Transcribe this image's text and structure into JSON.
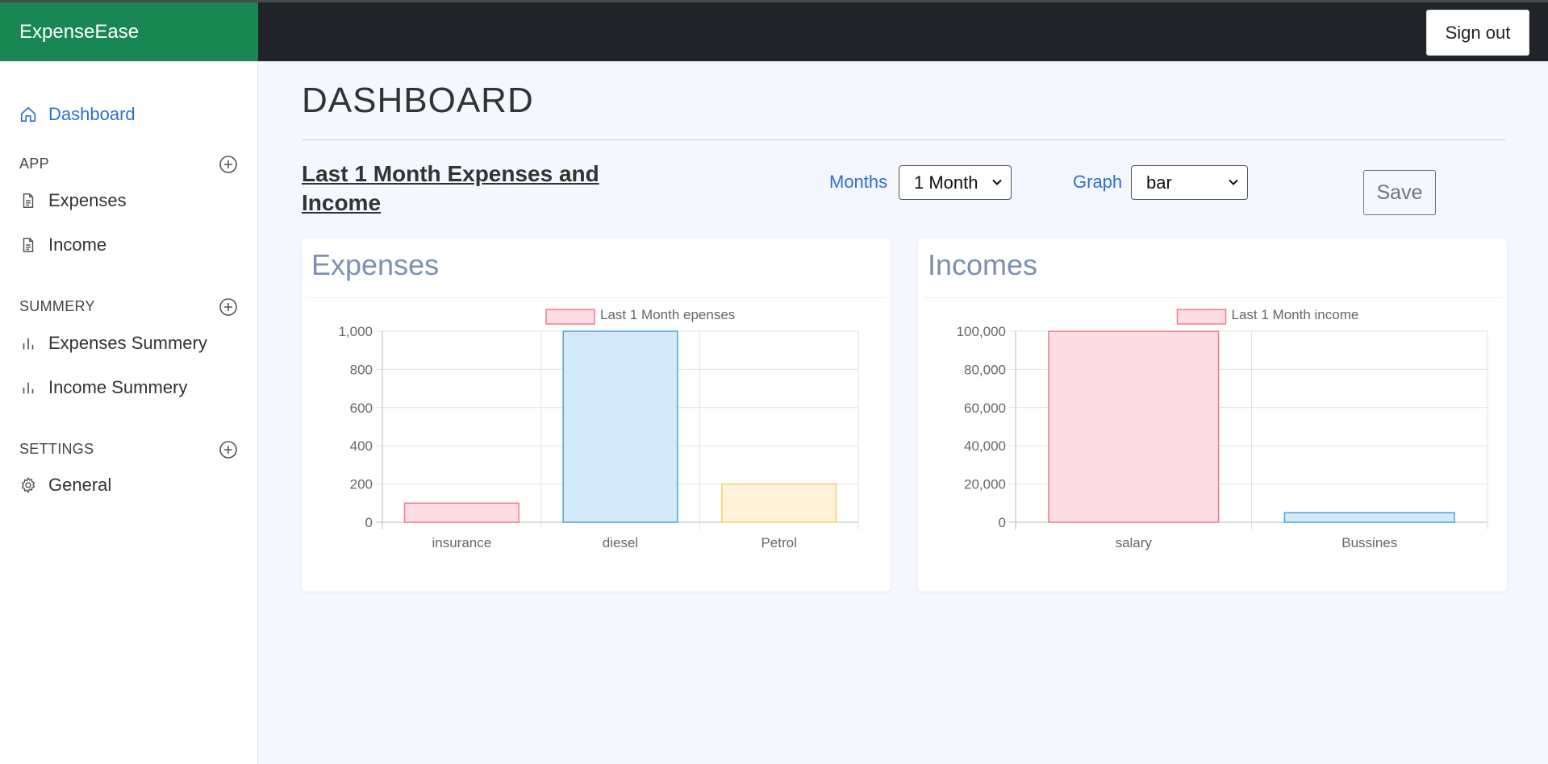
{
  "app": {
    "brand": "ExpenseEase",
    "signout_label": "Sign out"
  },
  "sidebar": {
    "dashboard": "Dashboard",
    "sections": [
      {
        "heading": "APP",
        "items": [
          "Expenses",
          "Income"
        ]
      },
      {
        "heading": "SUMMERY",
        "items": [
          "Expenses Summery",
          "Income Summery"
        ]
      },
      {
        "heading": "SETTINGS",
        "items": [
          "General"
        ]
      }
    ]
  },
  "main": {
    "page_title": "DASHBOARD",
    "section_title": "Last 1 Month Expenses and Income",
    "months_label": "Months",
    "months_value": "1 Month",
    "graph_label": "Graph",
    "graph_value": "bar",
    "save_label": "Save"
  },
  "cards": {
    "expenses_title": "Expenses",
    "incomes_title": "Incomes"
  },
  "colors": {
    "brand": "#198754",
    "topbar": "#212529",
    "link": "#2c6fd6"
  },
  "chart_data": [
    {
      "type": "bar",
      "legend": "Last 1 Month epenses",
      "categories": [
        "insurance",
        "diesel",
        "Petrol"
      ],
      "values": [
        100,
        1000,
        200
      ],
      "ylim": [
        0,
        1000
      ],
      "yticks": [
        "0",
        "200",
        "400",
        "600",
        "800",
        "1,000"
      ],
      "ytick_values": [
        0,
        200,
        400,
        600,
        800,
        1000
      ],
      "fills": [
        "#ffdde4",
        "#d4eaf8",
        "#fff3da"
      ],
      "strokes": [
        "#f07a92",
        "#4ba1dc",
        "#f6cb6d"
      ],
      "grid": true,
      "legend_position": "top"
    },
    {
      "type": "bar",
      "legend": "Last 1 Month income",
      "categories": [
        "salary",
        "Bussines"
      ],
      "values": [
        100000,
        5000
      ],
      "ylim": [
        0,
        100000
      ],
      "yticks": [
        "0",
        "20,000",
        "40,000",
        "60,000",
        "80,000",
        "100,000"
      ],
      "ytick_values": [
        0,
        20000,
        40000,
        60000,
        80000,
        100000
      ],
      "fills": [
        "#ffdde4",
        "#d4eaf8"
      ],
      "strokes": [
        "#f07a92",
        "#4ba1dc"
      ],
      "grid": true,
      "legend_position": "top"
    }
  ]
}
